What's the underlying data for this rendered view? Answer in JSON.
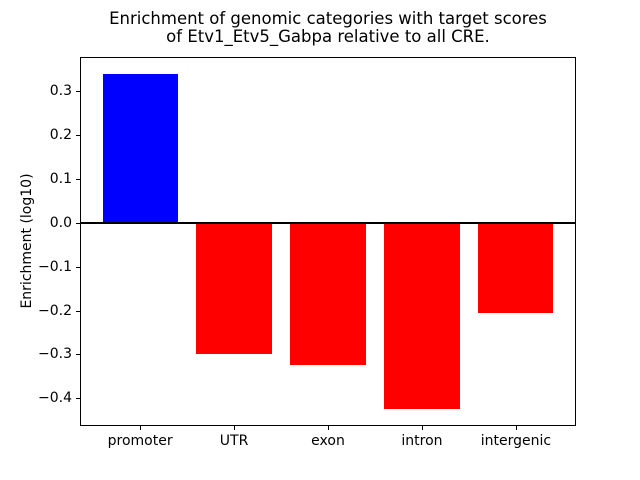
{
  "figure": {
    "background": "#ffffff"
  },
  "chart_data": {
    "type": "bar",
    "title_line1": "Enrichment of genomic categories with target scores",
    "title_line2": "of Etv1_Etv5_Gabpa relative to all CRE.",
    "ylabel": "Enrichment (log10)",
    "xlabel": "",
    "categories": [
      "promoter",
      "UTR",
      "exon",
      "intron",
      "intergenic"
    ],
    "values": [
      0.34,
      -0.3,
      -0.325,
      -0.425,
      -0.205
    ],
    "bar_colors": [
      "#0000ff",
      "#ff0000",
      "#ff0000",
      "#ff0000",
      "#ff0000"
    ],
    "positive_color": "#0000ff",
    "negative_color": "#ff0000",
    "ylim": [
      -0.463,
      0.378
    ],
    "xlim": [
      -0.64,
      4.64
    ],
    "bar_width": 0.8,
    "ytick_values": [
      0.3,
      0.2,
      0.1,
      0.0,
      -0.1,
      -0.2,
      -0.3,
      -0.4
    ],
    "ytick_labels": [
      "0.3",
      "0.2",
      "0.1",
      "0.0",
      "−0.1",
      "−0.2",
      "−0.3",
      "−0.4"
    ],
    "zero_line": true,
    "grid": false,
    "legend": null,
    "axis_color": "#000000",
    "text_color": "#000000"
  }
}
